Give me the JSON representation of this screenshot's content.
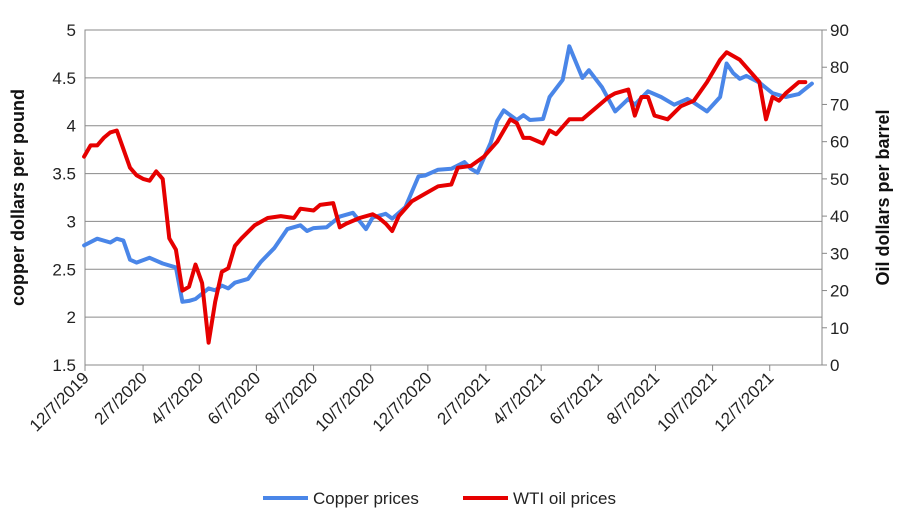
{
  "chart_data": {
    "type": "line",
    "title": "",
    "xlabel": "",
    "ylabel_left": "copper dollars per pound",
    "ylabel_right": "Oil dollars per barrel",
    "ylim_left": [
      1.5,
      5
    ],
    "ylim_right": [
      0,
      90
    ],
    "yticks_left": [
      "1.5",
      "2",
      "2.5",
      "3",
      "3.5",
      "4",
      "4.5",
      "5"
    ],
    "yticks_right": [
      "0",
      "10",
      "20",
      "30",
      "40",
      "50",
      "60",
      "70",
      "80",
      "90"
    ],
    "x_tick_labels": [
      "12/7/2019",
      "2/7/2020",
      "4/7/2020",
      "6/7/2020",
      "8/7/2020",
      "10/7/2020",
      "12/7/2020",
      "2/7/2021",
      "4/7/2021",
      "6/7/2021",
      "8/7/2021",
      "10/7/2021",
      "12/7/2021"
    ],
    "grid": "horizontal",
    "legend_position": "bottom",
    "series": [
      {
        "name": "Copper prices",
        "axis": "left",
        "color": "#4A86E8",
        "points": [
          [
            "2019-12-06",
            2.75
          ],
          [
            "2019-12-20",
            2.82
          ],
          [
            "2020-01-03",
            2.78
          ],
          [
            "2020-01-10",
            2.82
          ],
          [
            "2020-01-17",
            2.8
          ],
          [
            "2020-01-24",
            2.6
          ],
          [
            "2020-01-31",
            2.57
          ],
          [
            "2020-02-14",
            2.62
          ],
          [
            "2020-02-28",
            2.56
          ],
          [
            "2020-03-13",
            2.52
          ],
          [
            "2020-03-20",
            2.16
          ],
          [
            "2020-03-27",
            2.17
          ],
          [
            "2020-04-03",
            2.19
          ],
          [
            "2020-04-17",
            2.3
          ],
          [
            "2020-04-24",
            2.28
          ],
          [
            "2020-05-01",
            2.33
          ],
          [
            "2020-05-08",
            2.3
          ],
          [
            "2020-05-15",
            2.36
          ],
          [
            "2020-05-29",
            2.4
          ],
          [
            "2020-06-12",
            2.58
          ],
          [
            "2020-06-26",
            2.72
          ],
          [
            "2020-07-10",
            2.92
          ],
          [
            "2020-07-24",
            2.96
          ],
          [
            "2020-07-31",
            2.9
          ],
          [
            "2020-08-07",
            2.93
          ],
          [
            "2020-08-21",
            2.94
          ],
          [
            "2020-09-04",
            3.05
          ],
          [
            "2020-09-18",
            3.09
          ],
          [
            "2020-10-02",
            2.92
          ],
          [
            "2020-10-09",
            3.04
          ],
          [
            "2020-10-23",
            3.08
          ],
          [
            "2020-10-30",
            3.03
          ],
          [
            "2020-11-13",
            3.15
          ],
          [
            "2020-11-27",
            3.47
          ],
          [
            "2020-12-04",
            3.48
          ],
          [
            "2020-12-18",
            3.54
          ],
          [
            "2021-01-01",
            3.55
          ],
          [
            "2021-01-15",
            3.62
          ],
          [
            "2021-01-22",
            3.55
          ],
          [
            "2021-01-29",
            3.51
          ],
          [
            "2021-02-12",
            3.82
          ],
          [
            "2021-02-19",
            4.05
          ],
          [
            "2021-02-26",
            4.16
          ],
          [
            "2021-03-12",
            4.06
          ],
          [
            "2021-03-19",
            4.11
          ],
          [
            "2021-03-26",
            4.06
          ],
          [
            "2021-04-09",
            4.07
          ],
          [
            "2021-04-16",
            4.3
          ],
          [
            "2021-04-30",
            4.48
          ],
          [
            "2021-05-07",
            4.83
          ],
          [
            "2021-05-21",
            4.5
          ],
          [
            "2021-05-28",
            4.58
          ],
          [
            "2021-06-11",
            4.4
          ],
          [
            "2021-06-25",
            4.15
          ],
          [
            "2021-07-09",
            4.28
          ],
          [
            "2021-07-16",
            4.22
          ],
          [
            "2021-07-30",
            4.36
          ],
          [
            "2021-08-13",
            4.3
          ],
          [
            "2021-08-27",
            4.22
          ],
          [
            "2021-09-10",
            4.28
          ],
          [
            "2021-09-17",
            4.24
          ],
          [
            "2021-10-01",
            4.15
          ],
          [
            "2021-10-15",
            4.3
          ],
          [
            "2021-10-22",
            4.65
          ],
          [
            "2021-10-29",
            4.55
          ],
          [
            "2021-11-05",
            4.49
          ],
          [
            "2021-11-12",
            4.52
          ],
          [
            "2021-11-26",
            4.45
          ],
          [
            "2021-12-10",
            4.34
          ],
          [
            "2021-12-24",
            4.3
          ],
          [
            "2022-01-07",
            4.33
          ],
          [
            "2022-01-21",
            4.44
          ]
        ]
      },
      {
        "name": "WTI oil prices",
        "axis": "right",
        "color": "#E60000",
        "points": [
          [
            "2019-12-06",
            56
          ],
          [
            "2019-12-13",
            59
          ],
          [
            "2019-12-20",
            59
          ],
          [
            "2019-12-27",
            61
          ],
          [
            "2020-01-03",
            62.5
          ],
          [
            "2020-01-10",
            63
          ],
          [
            "2020-01-17",
            58
          ],
          [
            "2020-01-24",
            53
          ],
          [
            "2020-01-31",
            51
          ],
          [
            "2020-02-07",
            50
          ],
          [
            "2020-02-14",
            49.5
          ],
          [
            "2020-02-21",
            52
          ],
          [
            "2020-02-28",
            50
          ],
          [
            "2020-03-06",
            34
          ],
          [
            "2020-03-13",
            31
          ],
          [
            "2020-03-20",
            20
          ],
          [
            "2020-03-27",
            21
          ],
          [
            "2020-04-03",
            27
          ],
          [
            "2020-04-10",
            22
          ],
          [
            "2020-04-17",
            6
          ],
          [
            "2020-04-24",
            17
          ],
          [
            "2020-05-01",
            25
          ],
          [
            "2020-05-08",
            26
          ],
          [
            "2020-05-15",
            32
          ],
          [
            "2020-05-22",
            34
          ],
          [
            "2020-06-05",
            37.5
          ],
          [
            "2020-06-19",
            39.5
          ],
          [
            "2020-07-03",
            40
          ],
          [
            "2020-07-17",
            39.5
          ],
          [
            "2020-07-24",
            42
          ],
          [
            "2020-08-07",
            41.5
          ],
          [
            "2020-08-14",
            43
          ],
          [
            "2020-08-28",
            43.5
          ],
          [
            "2020-09-04",
            37
          ],
          [
            "2020-09-11",
            38
          ],
          [
            "2020-09-25",
            39.5
          ],
          [
            "2020-10-09",
            40.5
          ],
          [
            "2020-10-16",
            39.5
          ],
          [
            "2020-10-23",
            38
          ],
          [
            "2020-10-30",
            36
          ],
          [
            "2020-11-06",
            40
          ],
          [
            "2020-11-20",
            44
          ],
          [
            "2020-12-04",
            46
          ],
          [
            "2020-12-18",
            48
          ],
          [
            "2021-01-01",
            48.5
          ],
          [
            "2021-01-08",
            53
          ],
          [
            "2021-01-22",
            53.5
          ],
          [
            "2021-02-05",
            56
          ],
          [
            "2021-02-19",
            60
          ],
          [
            "2021-03-05",
            66
          ],
          [
            "2021-03-12",
            65
          ],
          [
            "2021-03-19",
            61
          ],
          [
            "2021-03-26",
            61
          ],
          [
            "2021-04-09",
            59.5
          ],
          [
            "2021-04-16",
            63
          ],
          [
            "2021-04-23",
            62
          ],
          [
            "2021-05-07",
            66
          ],
          [
            "2021-05-21",
            66
          ],
          [
            "2021-06-04",
            69
          ],
          [
            "2021-06-18",
            72
          ],
          [
            "2021-06-25",
            73
          ],
          [
            "2021-07-09",
            74
          ],
          [
            "2021-07-16",
            67
          ],
          [
            "2021-07-23",
            72
          ],
          [
            "2021-07-30",
            72
          ],
          [
            "2021-08-06",
            67
          ],
          [
            "2021-08-20",
            66
          ],
          [
            "2021-09-03",
            69.5
          ],
          [
            "2021-09-17",
            71
          ],
          [
            "2021-10-01",
            76
          ],
          [
            "2021-10-15",
            82
          ],
          [
            "2021-10-22",
            84
          ],
          [
            "2021-11-05",
            82
          ],
          [
            "2021-11-12",
            80
          ],
          [
            "2021-11-26",
            76
          ],
          [
            "2021-12-03",
            66
          ],
          [
            "2021-12-10",
            72
          ],
          [
            "2021-12-17",
            71
          ],
          [
            "2021-12-24",
            73
          ],
          [
            "2022-01-07",
            76
          ],
          [
            "2022-01-14",
            76
          ]
        ]
      }
    ]
  }
}
